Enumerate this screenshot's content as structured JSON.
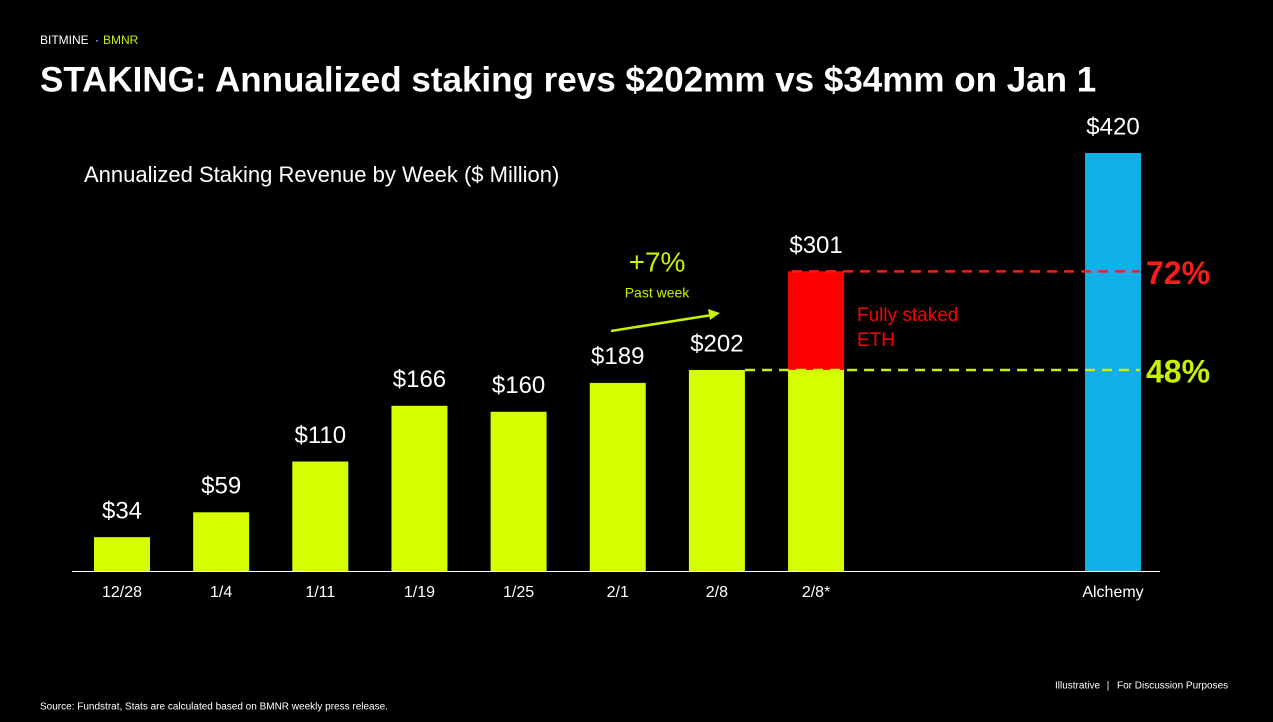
{
  "header": {
    "brand": "BITMINE",
    "ticker": "BMNR"
  },
  "chart_data": {
    "type": "bar",
    "title": "STAKING: Annualized staking revs $202mm vs $34mm on Jan 1",
    "subtitle": "Annualized Staking Revenue by Week ($ Million)",
    "categories": [
      "12/28",
      "1/4",
      "1/11",
      "1/19",
      "1/25",
      "2/1",
      "2/8",
      "2/8*",
      "Alchemy"
    ],
    "values": [
      34,
      59,
      110,
      166,
      160,
      189,
      202,
      301,
      420
    ],
    "value_labels": [
      "$34",
      "$59",
      "$110",
      "$166",
      "$160",
      "$189",
      "$202",
      "$301",
      "$420"
    ],
    "colors": [
      "#d4ff00",
      "#d4ff00",
      "#d4ff00",
      "#d4ff00",
      "#d4ff00",
      "#d4ff00",
      "#d4ff00",
      "#d4ff00",
      "#12aee8"
    ],
    "ylim": [
      0,
      420
    ],
    "highlight": {
      "lines": [
        "Fully staked",
        "ETH"
      ],
      "color": "#ff0000"
    },
    "reference_lines": [
      {
        "y": 301,
        "value": 72,
        "label": "72%",
        "color": "#ff1a1a"
      },
      {
        "y": 202,
        "value": 48,
        "label": "48%",
        "color": "#c8f000"
      }
    ],
    "annotations": [
      {
        "text": "+7%",
        "note": "Past week",
        "color": "#c8f000"
      }
    ]
  },
  "footer": {
    "source": "Source: Fundstrat, Stats are calculated based on BMNR weekly press release.",
    "right": [
      "Illustrative",
      "For Discussion Purposes"
    ]
  }
}
